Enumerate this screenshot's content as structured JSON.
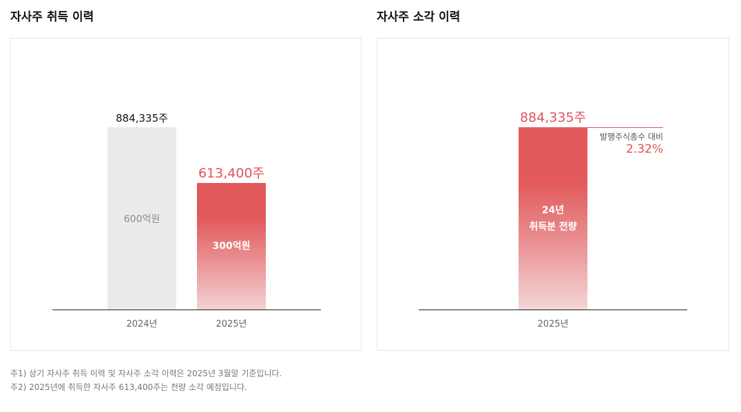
{
  "chart_data": [
    {
      "type": "bar",
      "title": "자사주 취득 이력",
      "categories": [
        "2024년",
        "2025년"
      ],
      "values": [
        884335,
        613400
      ],
      "value_labels": [
        "884,335주",
        "613,400주"
      ],
      "bar_labels": [
        "600억원",
        "300억원"
      ],
      "bar_colors": [
        "#ebebeb",
        "#e25a5c"
      ],
      "ylim": [
        0,
        1000000
      ]
    },
    {
      "type": "bar",
      "title": "자사주 소각 이력",
      "categories": [
        "2025년"
      ],
      "values": [
        884335
      ],
      "value_labels": [
        "884,335주"
      ],
      "bar_labels": [
        "24년\n취득분 전량"
      ],
      "bar_label_lines": [
        "24년",
        "취득분 전량"
      ],
      "bar_colors": [
        "#e25a5c"
      ],
      "annotation": {
        "caption": "발행주식총수 대비",
        "value": "2.32%"
      },
      "ylim": [
        0,
        1000000
      ]
    }
  ],
  "footnotes": [
    "주1) 상기 자사주 취득 이력 및 자사주 소각 이력은 2025년 3월말 기준입니다.",
    "주2) 2025년에 취득한 자사주 613,400주는 전량 소각 예정입니다."
  ],
  "colors": {
    "accent": "#e0535a",
    "bar_gray": "#ebebeb",
    "baseline": "#222222"
  }
}
